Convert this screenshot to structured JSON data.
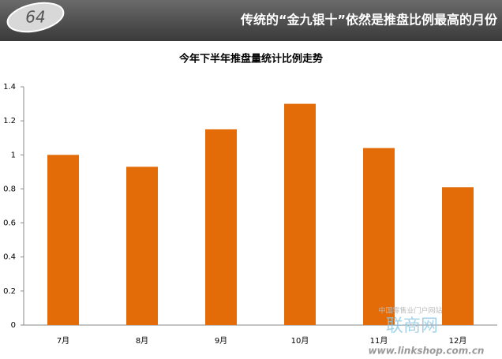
{
  "header": {
    "badge": "64",
    "title": "传统的“金九银十”依然是推盘比例最高的月份"
  },
  "chart_data": {
    "type": "bar",
    "title": "今年下半年推盘量统计比例走势",
    "categories": [
      "7月",
      "8月",
      "9月",
      "10月",
      "11月",
      "12月"
    ],
    "values": [
      1.0,
      0.93,
      1.15,
      1.3,
      1.04,
      0.81
    ],
    "color": "#e36c09",
    "ylim": [
      0,
      1.4
    ],
    "yticks": [
      0,
      0.2,
      0.4,
      0.6,
      0.8,
      1,
      1.2,
      1.4
    ],
    "grid": false
  },
  "watermark": {
    "site": "中国零售业门户网站",
    "brand": "联商网",
    "url": "www.linkshop.com.cn"
  }
}
